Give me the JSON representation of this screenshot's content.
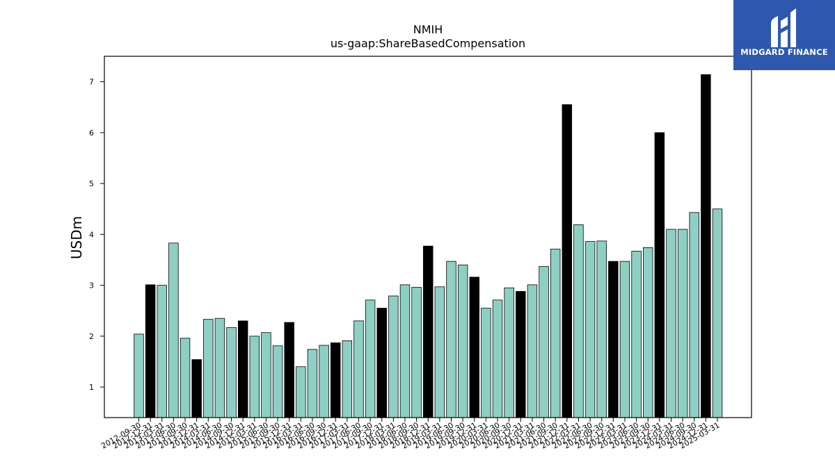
{
  "chart_data": {
    "type": "bar",
    "title": "NMIH",
    "subtitle": "us-gaap:ShareBasedCompensation",
    "xlabel": "",
    "ylabel": "USDm",
    "ylim": [
      0.4,
      7.5
    ],
    "yticks": [
      1,
      2,
      3,
      4,
      5,
      6,
      7
    ],
    "grid": false,
    "colors": {
      "quarter": "#8ecfc4",
      "year_end": "#000000",
      "edge": "#000000"
    },
    "categories": [
      "2012-09-30",
      "2012-12-31",
      "2013-03-31",
      "2013-06-30",
      "2013-09-30",
      "2013-12-31",
      "2014-03-31",
      "2014-06-30",
      "2014-09-30",
      "2014-12-31",
      "2015-03-31",
      "2015-06-30",
      "2015-09-30",
      "2015-12-31",
      "2016-03-31",
      "2016-06-30",
      "2016-09-30",
      "2016-12-31",
      "2017-03-31",
      "2017-06-30",
      "2017-09-30",
      "2017-12-31",
      "2018-03-31",
      "2018-06-30",
      "2018-09-30",
      "2018-12-31",
      "2019-03-31",
      "2019-06-30",
      "2019-09-30",
      "2019-12-31",
      "2020-03-31",
      "2020-06-30",
      "2020-09-30",
      "2020-12-31",
      "2021-03-31",
      "2021-06-30",
      "2021-09-30",
      "2021-12-31",
      "2022-03-31",
      "2022-06-30",
      "2022-09-30",
      "2022-12-31",
      "2023-03-31",
      "2023-06-30",
      "2023-09-30",
      "2023-12-31",
      "2024-03-31",
      "2024-06-30",
      "2024-09-30",
      "2024-12-31",
      "2025-03-31"
    ],
    "values": [
      2.04,
      3.01,
      3.0,
      3.83,
      1.96,
      1.54,
      2.33,
      2.35,
      2.17,
      2.3,
      2.0,
      2.07,
      1.81,
      2.27,
      1.4,
      1.74,
      1.82,
      1.87,
      1.91,
      2.3,
      2.71,
      2.55,
      2.79,
      3.01,
      2.96,
      3.77,
      2.97,
      3.47,
      3.4,
      3.16,
      2.55,
      2.71,
      2.95,
      2.88,
      3.01,
      3.37,
      3.71,
      6.55,
      4.19,
      3.86,
      3.87,
      3.47,
      3.47,
      3.67,
      3.74,
      6.0,
      4.1,
      4.1,
      4.43,
      7.14,
      4.5
    ],
    "year_end_flags": [
      false,
      true,
      false,
      false,
      false,
      true,
      false,
      false,
      false,
      true,
      false,
      false,
      false,
      true,
      false,
      false,
      false,
      true,
      false,
      false,
      false,
      true,
      false,
      false,
      false,
      true,
      false,
      false,
      false,
      true,
      false,
      false,
      false,
      true,
      false,
      false,
      false,
      true,
      false,
      false,
      false,
      true,
      false,
      false,
      false,
      true,
      false,
      false,
      false,
      true,
      false
    ]
  },
  "logo": {
    "text": "MIDGARD FINANCE",
    "icon": "midgard-logo-icon"
  }
}
